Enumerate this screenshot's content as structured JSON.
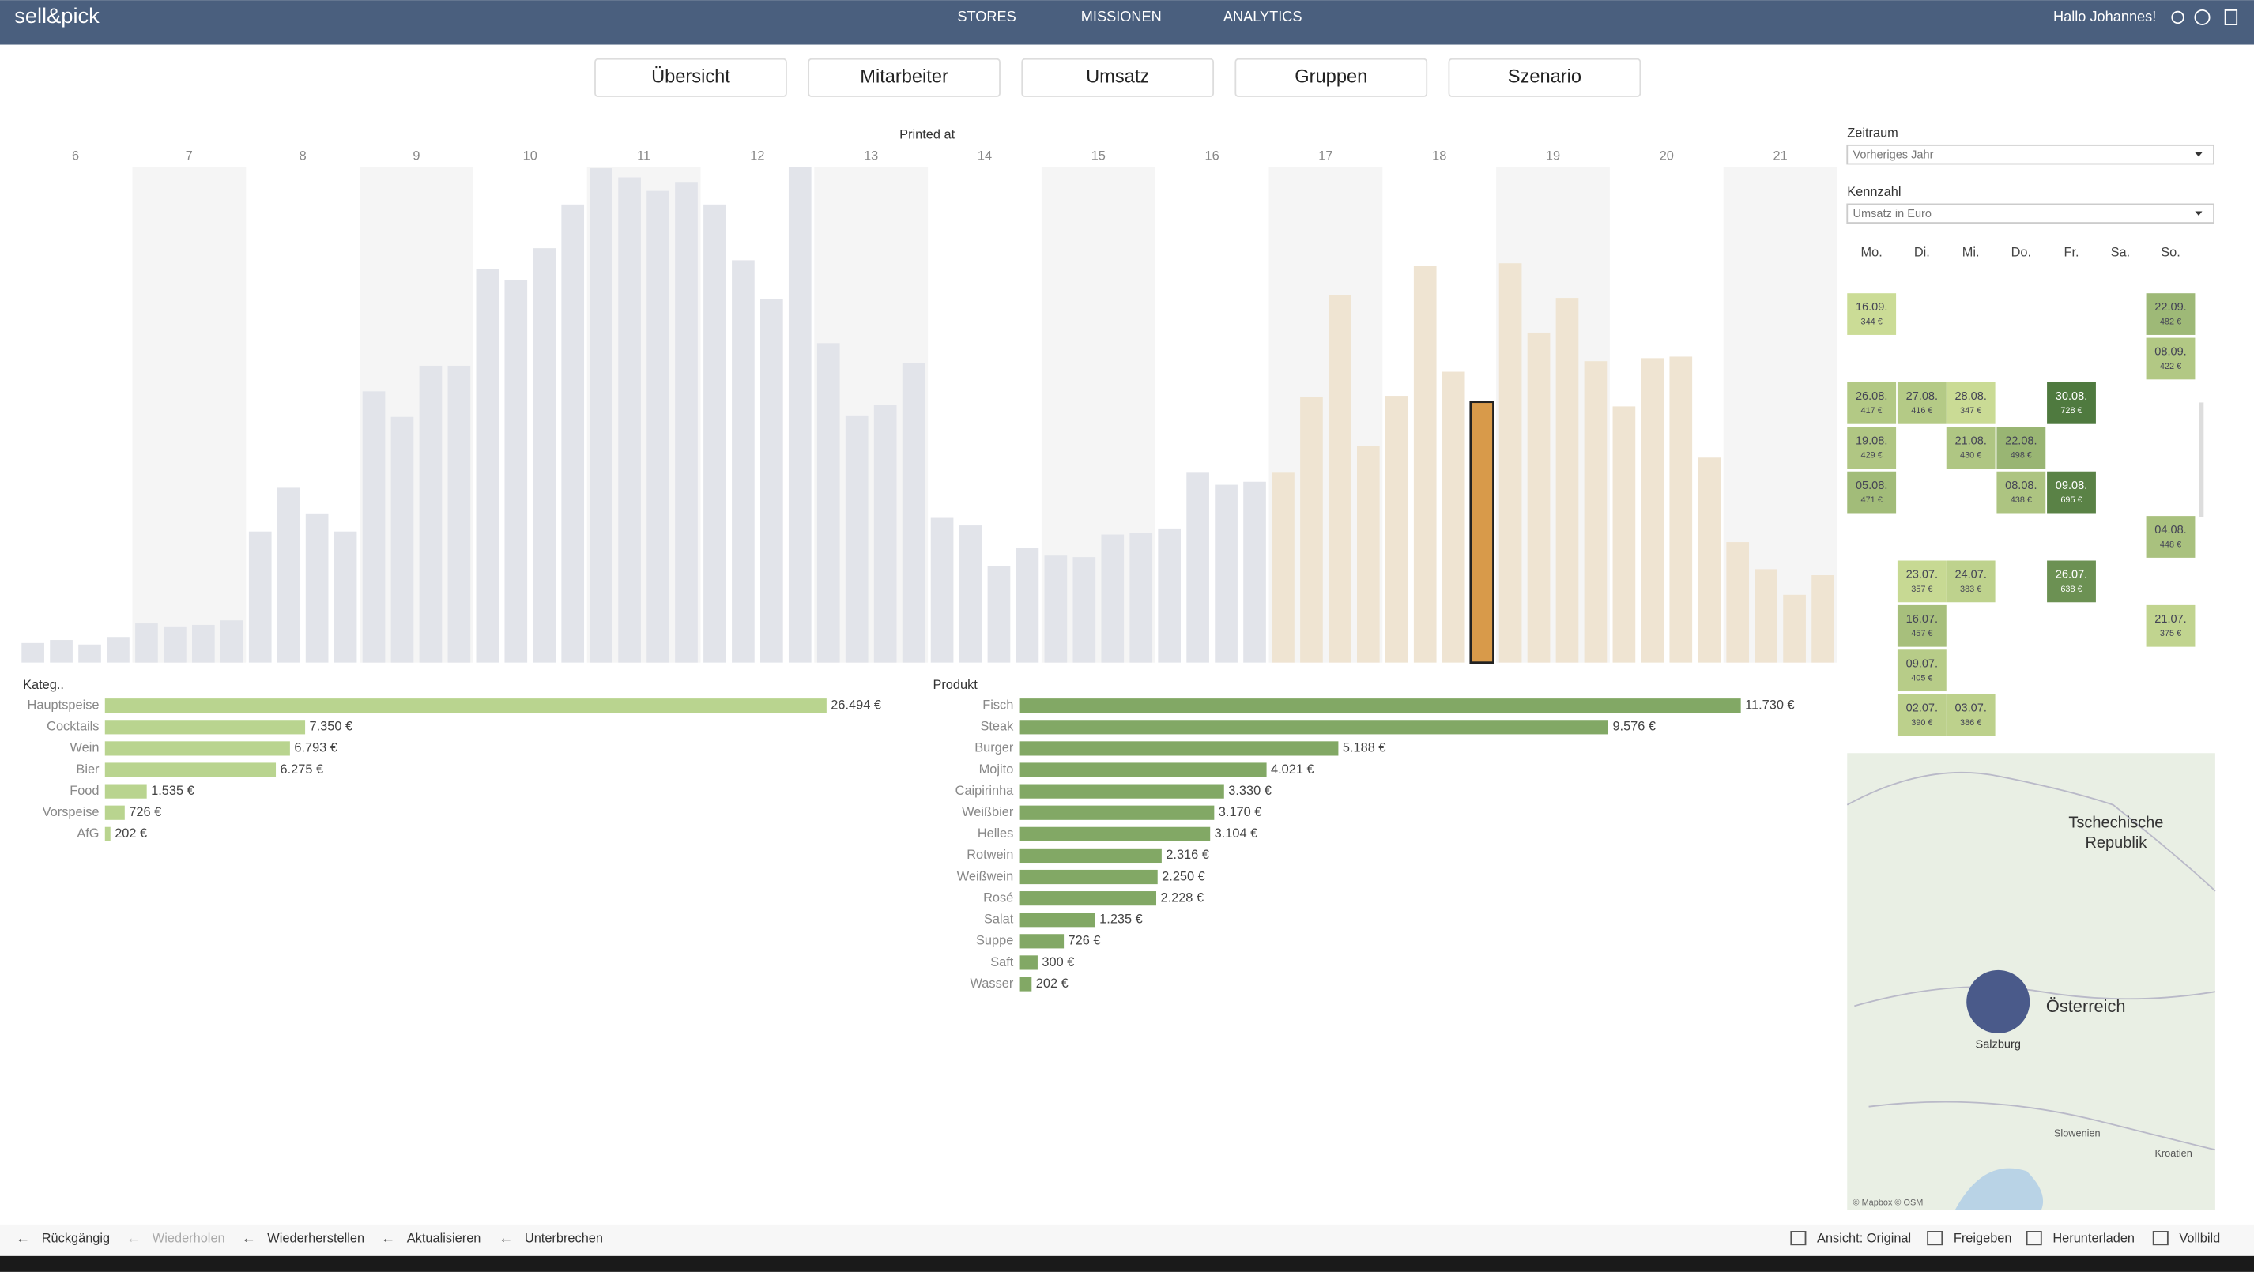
{
  "header": {
    "logo": "sell&pick",
    "nav": [
      "STORES",
      "MISSIONEN",
      "ANALYTICS"
    ],
    "greeting": "Hallo Johannes!"
  },
  "tabs": [
    "Übersicht",
    "Mitarbeiter",
    "Umsatz",
    "Gruppen",
    "Szenario"
  ],
  "hourly": {
    "title": "Printed at",
    "hours": [
      "6",
      "7",
      "8",
      "9",
      "10",
      "11",
      "12",
      "13",
      "14",
      "15",
      "16",
      "17",
      "18",
      "19",
      "20",
      "21"
    ],
    "values": [
      13,
      15,
      12,
      17,
      26,
      24,
      25,
      28,
      87,
      116,
      99,
      87,
      180,
      163,
      197,
      197,
      261,
      254,
      275,
      304,
      328,
      322,
      313,
      319,
      304,
      267,
      241,
      329,
      212,
      164,
      171,
      199,
      96,
      91,
      64,
      76,
      71,
      70,
      85,
      86,
      89,
      126,
      118,
      120,
      126,
      176,
      244,
      144,
      177,
      263,
      193,
      173,
      265,
      219,
      242,
      200,
      170,
      202,
      203,
      136,
      80,
      62,
      45,
      58
    ],
    "highlight": 51
  },
  "categories_chart": {
    "title": "Kateg..",
    "categories": [
      "Hauptspeise",
      "Cocktails",
      "Wein",
      "Bier",
      "Food",
      "Vorspeise",
      "AfG"
    ],
    "values": [
      26494,
      7350,
      6793,
      6275,
      1535,
      726,
      202
    ],
    "value_labels": [
      "26.494 €",
      "7.350 €",
      "6.793 €",
      "6.275 €",
      "1.535 €",
      "726 €",
      "202 €"
    ],
    "color": "#b9d48f"
  },
  "products_chart": {
    "title": "Produkt",
    "categories": [
      "Fisch",
      "Steak",
      "Burger",
      "Mojito",
      "Caipirinha",
      "Weißbier",
      "Helles",
      "Rotwein",
      "Weißwein",
      "Rosé",
      "Salat",
      "Suppe",
      "Saft",
      "Wasser"
    ],
    "values": [
      11730,
      9576,
      5188,
      4021,
      3330,
      3170,
      3104,
      2316,
      2250,
      2228,
      1235,
      726,
      300,
      202
    ],
    "value_labels": [
      "11.730 €",
      "9.576 €",
      "5.188 €",
      "4.021 €",
      "3.330 €",
      "3.170 €",
      "3.104 €",
      "2.316 €",
      "2.250 €",
      "2.228 €",
      "1.235 €",
      "726 €",
      "300 €",
      "202 €"
    ],
    "color": "#82a865"
  },
  "filters": [
    {
      "label": "Zeitraum",
      "value": "Vorheriges Jahr"
    },
    {
      "label": "Kennzahl",
      "value": "Umsatz in Euro"
    }
  ],
  "calendar": {
    "weekdays": [
      "Mo.",
      "Di.",
      "Mi.",
      "Do.",
      "Fr.",
      "Sa.",
      "So."
    ],
    "weeks": [
      [
        {
          "date": "16.09.",
          "value": 344,
          "label": "344 €"
        },
        null,
        null,
        null,
        null,
        null,
        {
          "date": "22.09.",
          "value": 482,
          "label": "482 €"
        }
      ],
      [
        null,
        null,
        null,
        null,
        null,
        null,
        {
          "date": "08.09.",
          "value": 422,
          "label": "422 €"
        }
      ],
      [
        {
          "date": "26.08.",
          "value": 417,
          "label": "417 €"
        },
        {
          "date": "27.08.",
          "value": 416,
          "label": "416 €"
        },
        {
          "date": "28.08.",
          "value": 347,
          "label": "347 €"
        },
        null,
        {
          "date": "30.08.",
          "value": 728,
          "label": "728 €"
        },
        null,
        null
      ],
      [
        {
          "date": "19.08.",
          "value": 429,
          "label": "429 €"
        },
        null,
        {
          "date": "21.08.",
          "value": 430,
          "label": "430 €"
        },
        {
          "date": "22.08.",
          "value": 498,
          "label": "498 €"
        },
        null,
        null,
        null
      ],
      [
        {
          "date": "05.08.",
          "value": 471,
          "label": "471 €"
        },
        null,
        null,
        {
          "date": "08.08.",
          "value": 438,
          "label": "438 €"
        },
        {
          "date": "09.08.",
          "value": 695,
          "label": "695 €"
        },
        null,
        null
      ],
      [
        null,
        null,
        null,
        null,
        null,
        null,
        {
          "date": "04.08.",
          "value": 448,
          "label": "448 €"
        }
      ],
      [
        null,
        {
          "date": "23.07.",
          "value": 357,
          "label": "357 €"
        },
        {
          "date": "24.07.",
          "value": 383,
          "label": "383 €"
        },
        null,
        {
          "date": "26.07.",
          "value": 638,
          "label": "638 €"
        },
        null,
        null
      ],
      [
        null,
        {
          "date": "16.07.",
          "value": 457,
          "label": "457 €"
        },
        null,
        null,
        null,
        null,
        {
          "date": "21.07.",
          "value": 375,
          "label": "375 €"
        }
      ],
      [
        null,
        {
          "date": "09.07.",
          "value": 405,
          "label": "405 €"
        },
        null,
        null,
        null,
        null,
        null
      ],
      [
        null,
        {
          "date": "02.07.",
          "value": 390,
          "label": "390 €"
        },
        {
          "date": "03.07.",
          "value": 386,
          "label": "386 €"
        },
        null,
        null,
        null,
        null
      ]
    ]
  },
  "map": {
    "labels": [
      "Tschechische",
      "Republik",
      "Österreich",
      "Salzburg",
      "Slowenien",
      "Kroatien"
    ],
    "credit": "© Mapbox © OSM"
  },
  "toolbar": {
    "left": [
      "Rückgängig",
      "Wiederholen",
      "Wiederherstellen",
      "Aktualisieren",
      "Unterbrechen"
    ],
    "right": [
      "Ansicht: Original",
      "Freigeben",
      "Herunterladen",
      "Vollbild"
    ]
  }
}
